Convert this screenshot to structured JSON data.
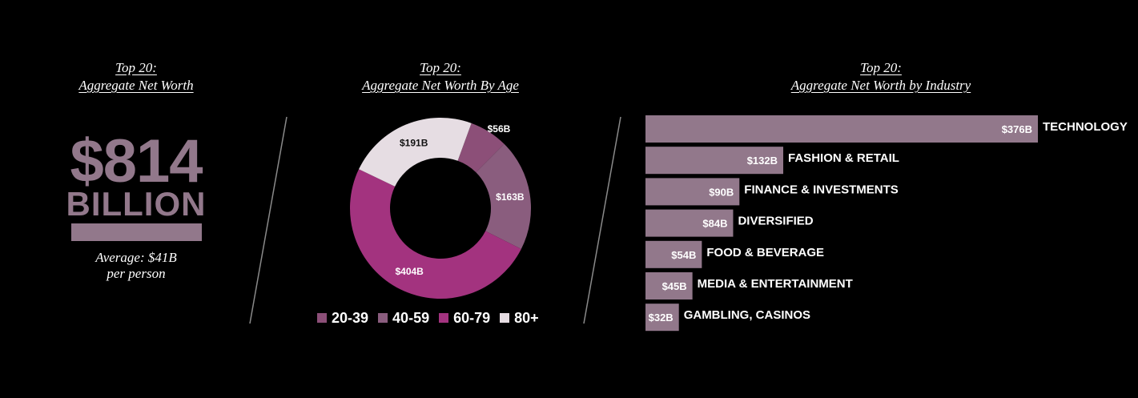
{
  "panels": {
    "total": {
      "title_line1": "Top 20:",
      "title_line2": "Aggregate Net Worth",
      "amount": "$814",
      "unit": "BILLION",
      "avg_line1": "Average: $41B",
      "avg_line2": "per person"
    },
    "age": {
      "title_line1": "Top 20:",
      "title_line2": "Aggregate Net Worth By Age"
    },
    "industry": {
      "title_line1": "Top 20:",
      "title_line2": "Aggregate Net Worth by Industry"
    }
  },
  "colors": {
    "bar": "#92788b",
    "big_text": "#92788b",
    "age_20_39": "#8c4f78",
    "age_40_59": "#8a5d7e",
    "age_60_79": "#a3337f",
    "age_80_plus": "#e6dde3"
  },
  "chart_data": [
    {
      "type": "pie",
      "variant": "donut",
      "categories": [
        "20-39",
        "40-59",
        "60-79",
        "80+"
      ],
      "values": [
        56,
        163,
        404,
        191
      ],
      "value_labels": [
        "$56B",
        "$163B",
        "$404B",
        "$191B"
      ],
      "unit": "$B",
      "legend": "bottom"
    },
    {
      "type": "bar",
      "orientation": "horizontal",
      "categories": [
        "TECHNOLOGY",
        "FASHION & RETAIL",
        "FINANCE & INVESTMENTS",
        "DIVERSIFIED",
        "FOOD & BEVERAGE",
        "MEDIA & ENTERTAINMENT",
        "GAMBLING, CASINOS"
      ],
      "values": [
        376,
        132,
        90,
        84,
        54,
        45,
        32
      ],
      "value_labels": [
        "$376B",
        "$132B",
        "$90B",
        "$84B",
        "$54B",
        "$45B",
        "$32B"
      ],
      "unit": "$B",
      "grid": false,
      "legend": "none"
    }
  ]
}
